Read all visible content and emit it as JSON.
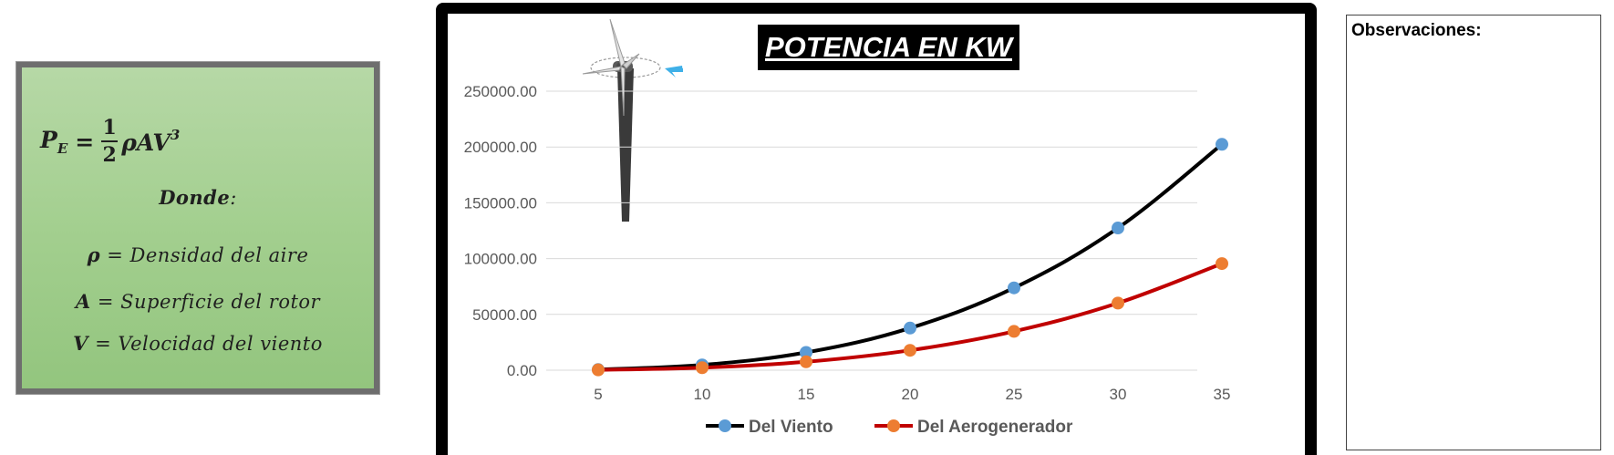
{
  "formula": {
    "lhs": "P",
    "lhs_sub": "E",
    "equals": "=",
    "frac_num": "1",
    "frac_den": "2",
    "rhs": "ρAV",
    "rhs_sup": "3",
    "donde": "Donde",
    "donde_colon": ":",
    "rho_sym": "ρ",
    "rho_def": "= Densidad del aire",
    "a_sym": "A",
    "a_def": "= Superficie del rotor",
    "v_sym": "V",
    "v_def": "= Velocidad del viento"
  },
  "observations": {
    "title": "Observaciones:"
  },
  "chart_data": {
    "type": "line",
    "title": "POTENCIA EN KW",
    "xlabel": "",
    "ylabel": "",
    "categories": [
      "5",
      "10",
      "15",
      "20",
      "25",
      "30",
      "35"
    ],
    "y_ticks": [
      "0.00",
      "50000.00",
      "100000.00",
      "150000.00",
      "200000.00",
      "250000.00"
    ],
    "ylim": [
      0,
      250000
    ],
    "grid": true,
    "legend_position": "bottom",
    "series": [
      {
        "name": "Del Viento",
        "line_color": "#000000",
        "marker_color": "#5b9bd5",
        "values": [
          590,
          4720,
          15930,
          37760,
          73750,
          127440,
          202370
        ]
      },
      {
        "name": "Del Aerogenerador",
        "line_color": "#c00000",
        "marker_color": "#ed7d31",
        "values": [
          280,
          2230,
          7520,
          17820,
          34810,
          60150,
          95520
        ]
      }
    ]
  }
}
